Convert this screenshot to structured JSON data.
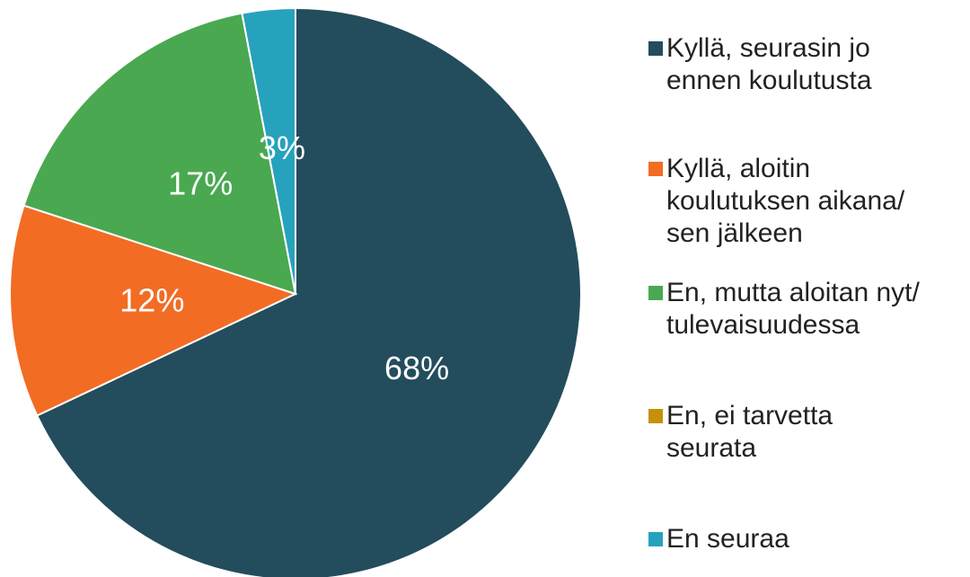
{
  "chart_data": {
    "type": "pie",
    "categories": [
      "Kyllä, seurasin jo ennen koulutusta",
      "Kyllä, aloitin koulutuksen aikana/ sen jälkeen",
      "En, mutta aloitan nyt/ tulevaisuudessa",
      "En, ei tarvetta seurata",
      "En seuraa"
    ],
    "values": [
      68,
      12,
      17,
      0,
      3
    ],
    "value_labels": [
      "68%",
      "12%",
      "17%",
      null,
      "3%"
    ],
    "colors": [
      "#234d5c",
      "#f26c24",
      "#4aa851",
      "#c8900a",
      "#26a2bd"
    ],
    "legend": "right"
  }
}
